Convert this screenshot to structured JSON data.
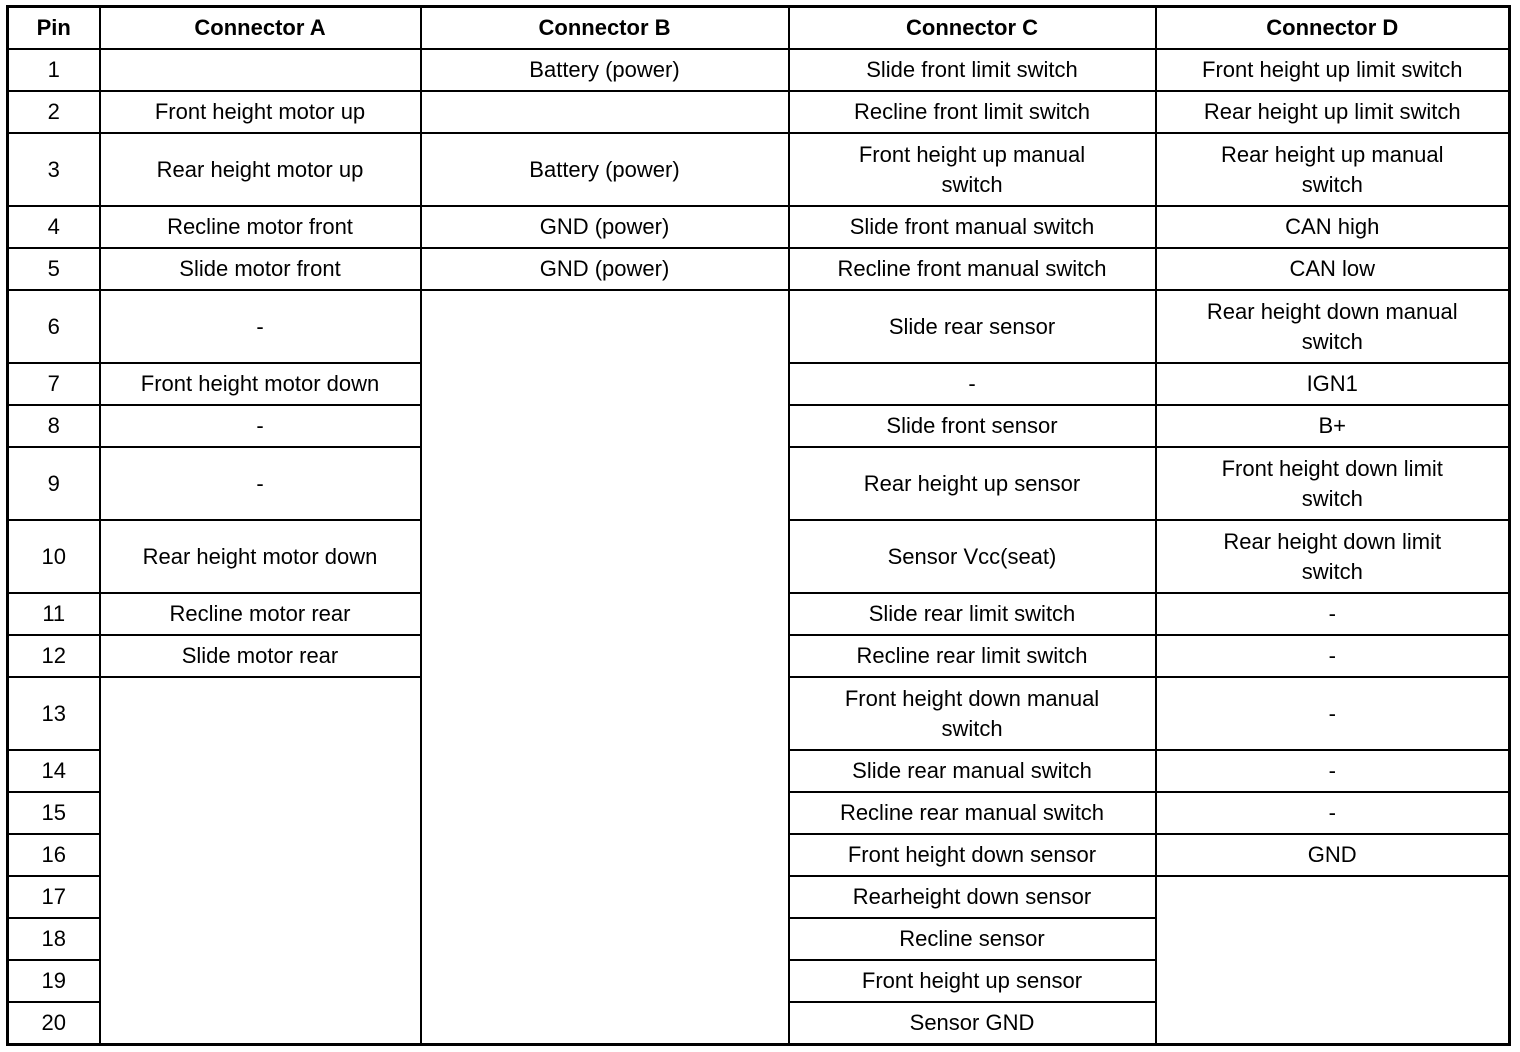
{
  "headers": [
    "Pin",
    "Connector A",
    "Connector B",
    "Connector C",
    "Connector D"
  ],
  "rows": [
    {
      "pin": "1",
      "a": "",
      "b": "Battery (power)",
      "c": "Slide front limit switch",
      "d": "Front height up limit switch"
    },
    {
      "pin": "2",
      "a": "Front height motor up",
      "b": "",
      "c": "Recline front limit switch",
      "d": "Rear height up limit switch"
    },
    {
      "pin": "3",
      "a": "Rear height motor up",
      "b": "Battery (power)",
      "c": "Front height up manual\nswitch",
      "d": "Rear height up manual\nswitch"
    },
    {
      "pin": "4",
      "a": "Recline motor front",
      "b": "GND (power)",
      "c": "Slide front manual switch",
      "d": "CAN high"
    },
    {
      "pin": "5",
      "a": "Slide motor front",
      "b": "GND (power)",
      "c": "Recline front manual switch",
      "d": "CAN low"
    },
    {
      "pin": "6",
      "a": "-",
      "b": "",
      "c": "Slide rear sensor",
      "d": "Rear height down manual\nswitch"
    },
    {
      "pin": "7",
      "a": "Front height motor down",
      "b": null,
      "c": "-",
      "d": "IGN1"
    },
    {
      "pin": "8",
      "a": "-",
      "b": null,
      "c": "Slide front sensor",
      "d": "B+"
    },
    {
      "pin": "9",
      "a": "-",
      "b": null,
      "c": "Rear height up sensor",
      "d": "Front height down limit\nswitch"
    },
    {
      "pin": "10",
      "a": "Rear height motor down",
      "b": null,
      "c": "Sensor Vcc(seat)",
      "d": "Rear height down limit\nswitch"
    },
    {
      "pin": "11",
      "a": "Recline motor rear",
      "b": null,
      "c": "Slide rear limit switch",
      "d": "-"
    },
    {
      "pin": "12",
      "a": "Slide motor rear",
      "b": null,
      "c": "Recline rear limit switch",
      "d": "-"
    },
    {
      "pin": "13",
      "a": "",
      "b": null,
      "c": "Front height down manual\nswitch",
      "d": "-"
    },
    {
      "pin": "14",
      "a": null,
      "b": null,
      "c": "Slide rear manual switch",
      "d": "-"
    },
    {
      "pin": "15",
      "a": null,
      "b": null,
      "c": "Recline rear manual switch",
      "d": "-"
    },
    {
      "pin": "16",
      "a": null,
      "b": null,
      "c": "Front height down sensor",
      "d": "GND"
    },
    {
      "pin": "17",
      "a": null,
      "b": null,
      "c": "Rearheight down sensor",
      "d": ""
    },
    {
      "pin": "18",
      "a": null,
      "b": null,
      "c": "Recline sensor",
      "d": null
    },
    {
      "pin": "19",
      "a": null,
      "b": null,
      "c": "Front height up sensor",
      "d": null
    },
    {
      "pin": "20",
      "a": null,
      "b": null,
      "c": "Sensor GND",
      "d": null
    }
  ]
}
